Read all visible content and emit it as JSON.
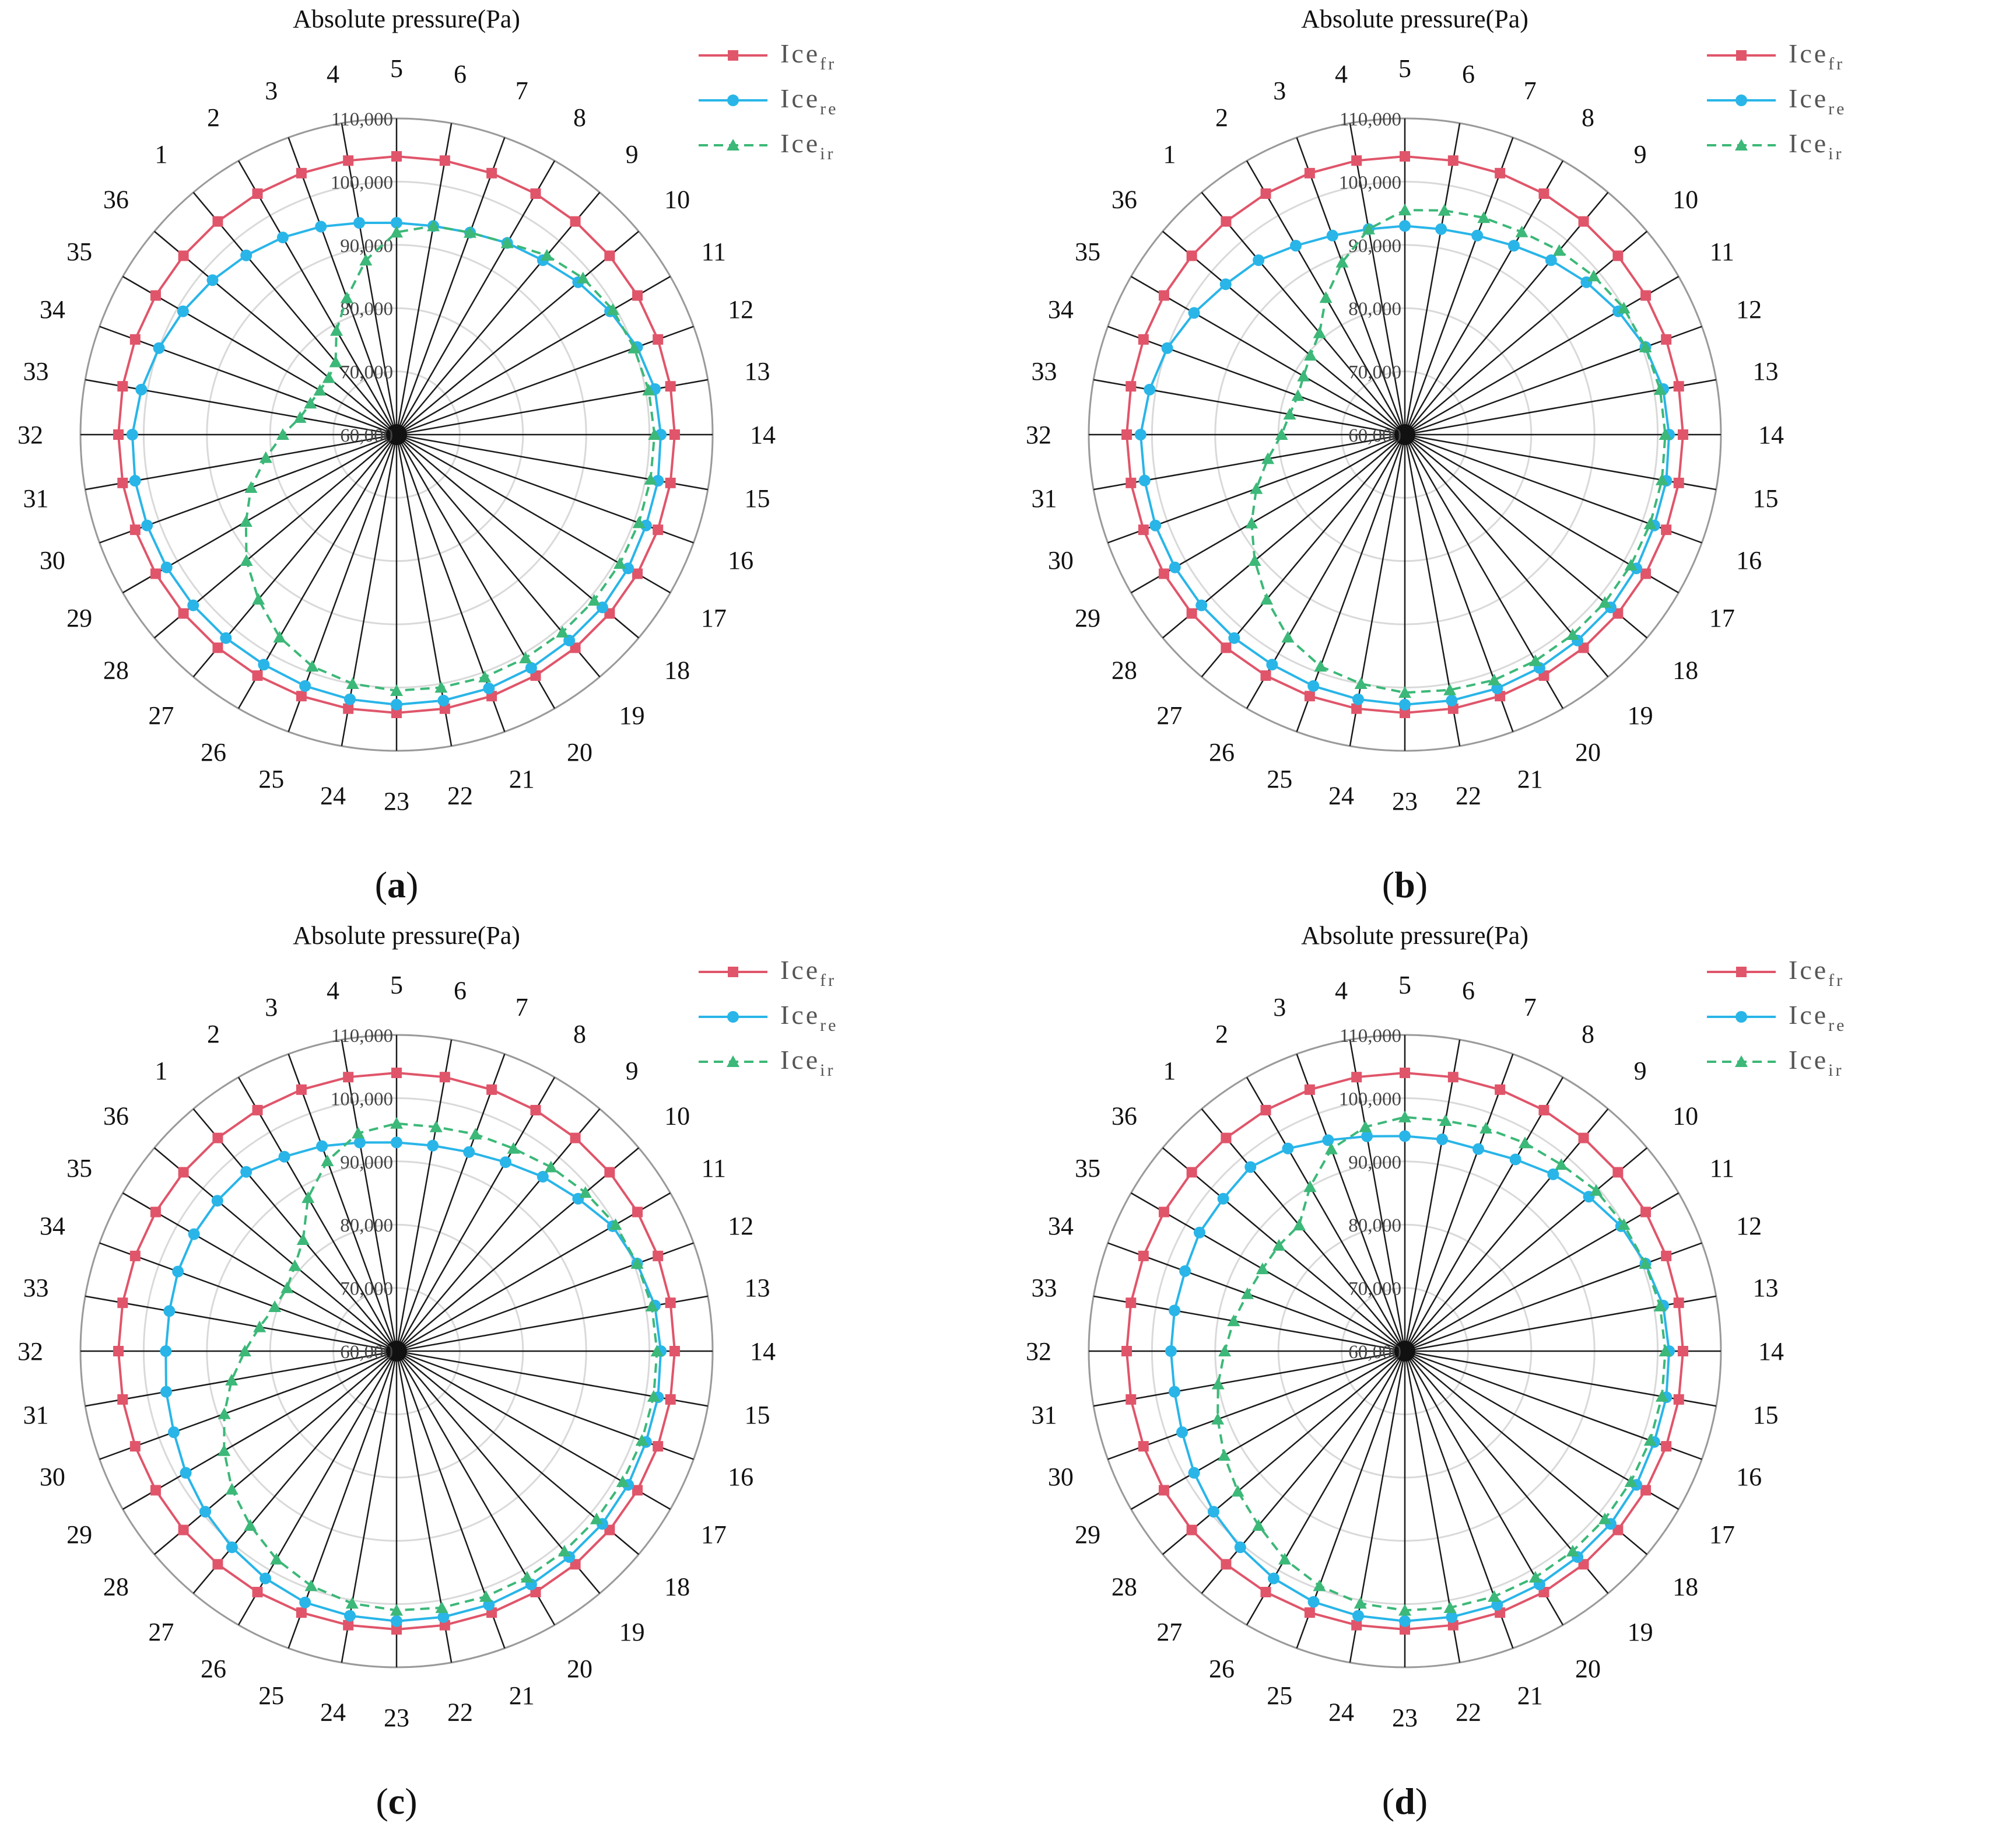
{
  "chart_data": [
    {
      "panel": "a",
      "type": "radar",
      "title": "Absolute pressure(Pa)",
      "angular_labels": [
        "1",
        "2",
        "3",
        "4",
        "5",
        "6",
        "7",
        "8",
        "9",
        "10",
        "11",
        "12",
        "13",
        "14",
        "15",
        "16",
        "17",
        "18",
        "19",
        "20",
        "21",
        "22",
        "23",
        "24",
        "25",
        "26",
        "27",
        "28",
        "29",
        "30",
        "31",
        "32",
        "33",
        "34",
        "35",
        "36"
      ],
      "radial_ticks": [
        "60,000",
        "70,000",
        "80,000",
        "90,000",
        "100,000",
        "110,000"
      ],
      "rlim": [
        60000,
        110000
      ],
      "series": [
        {
          "name": "Ice",
          "subscript": "fr",
          "color": "#e0556a",
          "marker": "square",
          "values": [
            104000,
            104000,
            104000,
            104000,
            104000,
            104000,
            104000,
            104000,
            104000,
            104000,
            104000,
            104000,
            104000,
            104000,
            104000,
            104000,
            104000,
            104000,
            104000,
            104000,
            104000,
            104000,
            104000,
            104000,
            104000,
            104000,
            104000,
            104000,
            104000,
            104000,
            104000,
            104000,
            104000,
            104000,
            104000,
            104000
          ]
        },
        {
          "name": "Ice",
          "subscript": "re",
          "color": "#29b5e8",
          "marker": "circle",
          "values": [
            97000,
            96000,
            95000,
            94000,
            93500,
            93500,
            94000,
            95000,
            96000,
            97500,
            99000,
            100500,
            101500,
            101800,
            102000,
            102000,
            102300,
            102500,
            102500,
            102600,
            102700,
            102700,
            102700,
            102500,
            102300,
            102000,
            102000,
            102000,
            102000,
            102000,
            102000,
            101800,
            101000,
            100000,
            99000,
            98000
          ]
        },
        {
          "name": "Ice",
          "subscript": "ir",
          "color": "#3cb878",
          "marker": "triangle",
          "values": [
            75000,
            79000,
            83000,
            88000,
            92000,
            93500,
            94000,
            95000,
            97000,
            98500,
            99500,
            100000,
            100500,
            100800,
            100800,
            100800,
            100800,
            100800,
            100800,
            100800,
            100800,
            100600,
            100500,
            100000,
            99000,
            97000,
            94000,
            91000,
            87500,
            84500,
            81000,
            78000,
            75500,
            74500,
            74000,
            74000
          ]
        }
      ]
    },
    {
      "panel": "b",
      "type": "radar",
      "title": "Absolute pressure(Pa)",
      "angular_labels": [
        "1",
        "2",
        "3",
        "4",
        "5",
        "6",
        "7",
        "8",
        "9",
        "10",
        "11",
        "12",
        "13",
        "14",
        "15",
        "16",
        "17",
        "18",
        "19",
        "20",
        "21",
        "22",
        "23",
        "24",
        "25",
        "26",
        "27",
        "28",
        "29",
        "30",
        "31",
        "32",
        "33",
        "34",
        "35",
        "36"
      ],
      "radial_ticks": [
        "60,000",
        "70,000",
        "80,000",
        "90,000",
        "100,000",
        "110,000"
      ],
      "rlim": [
        60000,
        110000
      ],
      "series": [
        {
          "name": "Ice",
          "subscript": "fr",
          "color": "#e0556a",
          "marker": "square",
          "values": [
            104000,
            104000,
            104000,
            104000,
            104000,
            104000,
            104000,
            104000,
            104000,
            104000,
            104000,
            104000,
            104000,
            104000,
            104000,
            104000,
            104000,
            104000,
            104000,
            104000,
            104000,
            104000,
            104000,
            104000,
            104000,
            104000,
            104000,
            104000,
            104000,
            104000,
            104000,
            104000,
            104000,
            104000,
            104000,
            104000
          ]
        },
        {
          "name": "Ice",
          "subscript": "re",
          "color": "#29b5e8",
          "marker": "circle",
          "values": [
            96000,
            94500,
            93500,
            93000,
            93000,
            93000,
            93500,
            94500,
            96000,
            97500,
            99000,
            100500,
            101500,
            101800,
            102000,
            102000,
            102300,
            102500,
            102500,
            102600,
            102700,
            102700,
            102700,
            102500,
            102300,
            102000,
            102000,
            102000,
            102000,
            102000,
            101800,
            101800,
            101000,
            100000,
            98500,
            97000
          ]
        },
        {
          "name": "Ice",
          "subscript": "ir",
          "color": "#3cb878",
          "marker": "triangle",
          "values": [
            81000,
            85000,
            89000,
            93000,
            95500,
            96000,
            96500,
            97000,
            98000,
            99000,
            100000,
            100500,
            101000,
            101200,
            101300,
            101300,
            101300,
            101300,
            101300,
            101300,
            101300,
            101000,
            100800,
            100000,
            99000,
            97000,
            94000,
            91000,
            88000,
            85000,
            82000,
            79500,
            78500,
            78000,
            78500,
            79500
          ]
        }
      ]
    },
    {
      "panel": "c",
      "type": "radar",
      "title": "Absolute pressure(Pa)",
      "angular_labels": [
        "1",
        "2",
        "3",
        "4",
        "5",
        "6",
        "7",
        "8",
        "9",
        "10",
        "11",
        "12",
        "13",
        "14",
        "15",
        "16",
        "17",
        "18",
        "19",
        "20",
        "21",
        "22",
        "23",
        "24",
        "25",
        "26",
        "27",
        "28",
        "29",
        "30",
        "31",
        "32",
        "33",
        "34",
        "35",
        "36"
      ],
      "radial_ticks": [
        "60,000",
        "70,000",
        "80,000",
        "90,000",
        "100,000",
        "110,000"
      ],
      "rlim": [
        60000,
        110000
      ],
      "series": [
        {
          "name": "Ice",
          "subscript": "fr",
          "color": "#e0556a",
          "marker": "square",
          "values": [
            104000,
            104000,
            104000,
            104000,
            104000,
            104000,
            104000,
            104000,
            104000,
            104000,
            104000,
            104000,
            104000,
            104000,
            104000,
            104000,
            104000,
            104000,
            104000,
            104000,
            104000,
            104000,
            104000,
            104000,
            104000,
            104000,
            104000,
            104000,
            104000,
            104000,
            104000,
            104000,
            104000,
            104000,
            104000,
            104000
          ]
        },
        {
          "name": "Ice",
          "subscript": "re",
          "color": "#29b5e8",
          "marker": "circle",
          "values": [
            97000,
            95500,
            94500,
            93500,
            93000,
            93000,
            93500,
            94500,
            96000,
            97500,
            99500,
            100500,
            101500,
            101800,
            102000,
            102000,
            102300,
            102500,
            102500,
            102600,
            102700,
            102700,
            102700,
            102500,
            102300,
            101500,
            100500,
            99500,
            98500,
            97500,
            97000,
            96500,
            96500,
            96800,
            97000,
            97000
          ]
        },
        {
          "name": "Ice",
          "subscript": "ir",
          "color": "#3cb878",
          "marker": "triangle",
          "values": [
            83000,
            88000,
            92000,
            95000,
            96000,
            96000,
            96500,
            97000,
            98000,
            99000,
            100000,
            100500,
            101000,
            101200,
            101300,
            101300,
            101300,
            101300,
            101300,
            101300,
            101300,
            101200,
            101000,
            100500,
            99500,
            98000,
            96000,
            94000,
            91500,
            89000,
            86500,
            84000,
            82000,
            80500,
            80000,
            81000
          ]
        }
      ]
    },
    {
      "panel": "d",
      "type": "radar",
      "title": "Absolute pressure(Pa)",
      "angular_labels": [
        "1",
        "2",
        "3",
        "4",
        "5",
        "6",
        "7",
        "8",
        "9",
        "10",
        "11",
        "12",
        "13",
        "14",
        "15",
        "16",
        "17",
        "18",
        "19",
        "20",
        "21",
        "22",
        "23",
        "24",
        "25",
        "26",
        "27",
        "28",
        "29",
        "30",
        "31",
        "32",
        "33",
        "34",
        "35",
        "36"
      ],
      "radial_ticks": [
        "60,000",
        "70,000",
        "80,000",
        "90,000",
        "100,000",
        "110,000"
      ],
      "rlim": [
        60000,
        110000
      ],
      "series": [
        {
          "name": "Ice",
          "subscript": "fr",
          "color": "#e0556a",
          "marker": "square",
          "values": [
            104000,
            104000,
            104000,
            104000,
            104000,
            104000,
            104000,
            104000,
            104000,
            104000,
            104000,
            104000,
            104000,
            104000,
            104000,
            104000,
            104000,
            104000,
            104000,
            104000,
            104000,
            104000,
            104000,
            104000,
            104000,
            104000,
            104000,
            104000,
            104000,
            104000,
            104000,
            104000,
            104000,
            104000,
            104000,
            104000
          ]
        },
        {
          "name": "Ice",
          "subscript": "re",
          "color": "#29b5e8",
          "marker": "circle",
          "values": [
            98000,
            97000,
            95500,
            94500,
            94000,
            94000,
            94000,
            95000,
            96500,
            98000,
            99500,
            100500,
            101500,
            101800,
            102000,
            102000,
            102300,
            102500,
            102500,
            102600,
            102700,
            102700,
            102700,
            102500,
            102200,
            101500,
            100500,
            99500,
            98500,
            97500,
            97000,
            97000,
            97000,
            97000,
            97500,
            97500
          ]
        },
        {
          "name": "Ice",
          "subscript": "ir",
          "color": "#3cb878",
          "marker": "triangle",
          "values": [
            86000,
            90000,
            94000,
            96000,
            97000,
            97000,
            97500,
            98000,
            98500,
            99500,
            100000,
            100500,
            101000,
            101200,
            101300,
            101300,
            101300,
            101300,
            101300,
            101300,
            101300,
            101200,
            101000,
            100500,
            99500,
            98000,
            96000,
            94500,
            93000,
            91500,
            90000,
            88500,
            87500,
            86500,
            86000,
            86000
          ]
        }
      ]
    }
  ],
  "panels": [
    {
      "letter": "a",
      "tag_open": "(",
      "tag_close": ")"
    },
    {
      "letter": "b",
      "tag_open": "(",
      "tag_close": ")"
    },
    {
      "letter": "c",
      "tag_open": "(",
      "tag_close": ")"
    },
    {
      "letter": "d",
      "tag_open": "(",
      "tag_close": ")"
    }
  ]
}
